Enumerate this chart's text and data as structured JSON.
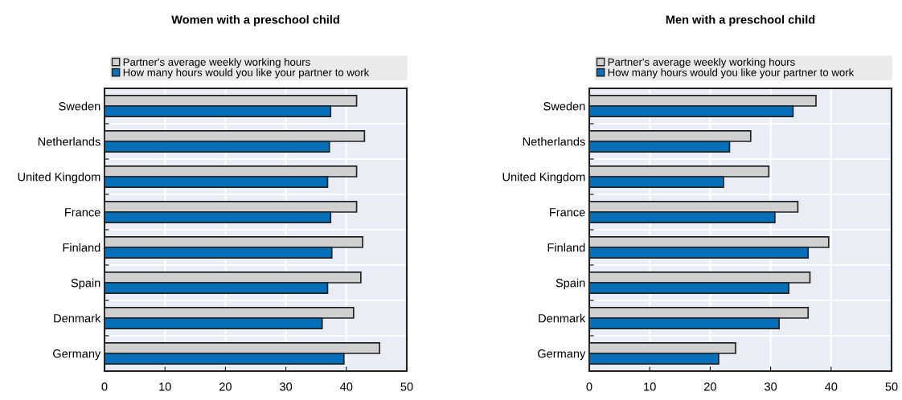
{
  "chart_data": [
    {
      "type": "bar",
      "orientation": "horizontal",
      "title": "Women with a preschool child",
      "categories": [
        "Sweden",
        "Netherlands",
        "United Kingdom",
        "France",
        "Finland",
        "Spain",
        "Denmark",
        "Germany"
      ],
      "series": [
        {
          "name": "Partner's average weekly working hours",
          "color": "#cfd0d2",
          "values": [
            41.7,
            43.0,
            41.7,
            41.7,
            42.7,
            42.4,
            41.2,
            45.5
          ]
        },
        {
          "name": "How many hours would you like your partner to work",
          "color": "#0570b9",
          "values": [
            37.4,
            37.2,
            36.9,
            37.4,
            37.6,
            36.9,
            36.0,
            39.6
          ]
        }
      ],
      "xlim": [
        0,
        50
      ],
      "xticks": [
        0,
        10,
        20,
        30,
        40,
        50
      ],
      "grid": true,
      "legend": "top"
    },
    {
      "type": "bar",
      "orientation": "horizontal",
      "title": "Men with a preschool child",
      "categories": [
        "Sweden",
        "Netherlands",
        "United Kingdom",
        "France",
        "Finland",
        "Spain",
        "Denmark",
        "Germany"
      ],
      "series": [
        {
          "name": "Partner's average weekly working hours",
          "color": "#cfd0d2",
          "values": [
            37.5,
            26.7,
            29.7,
            34.5,
            39.6,
            36.5,
            36.2,
            24.2
          ]
        },
        {
          "name": "How many hours would you like your partner to work",
          "color": "#0570b9",
          "values": [
            33.7,
            23.2,
            22.2,
            30.7,
            36.2,
            33.0,
            31.4,
            21.4
          ]
        }
      ],
      "xlim": [
        0,
        50
      ],
      "xticks": [
        0,
        10,
        20,
        30,
        40,
        50
      ],
      "grid": true,
      "legend": "top"
    }
  ]
}
